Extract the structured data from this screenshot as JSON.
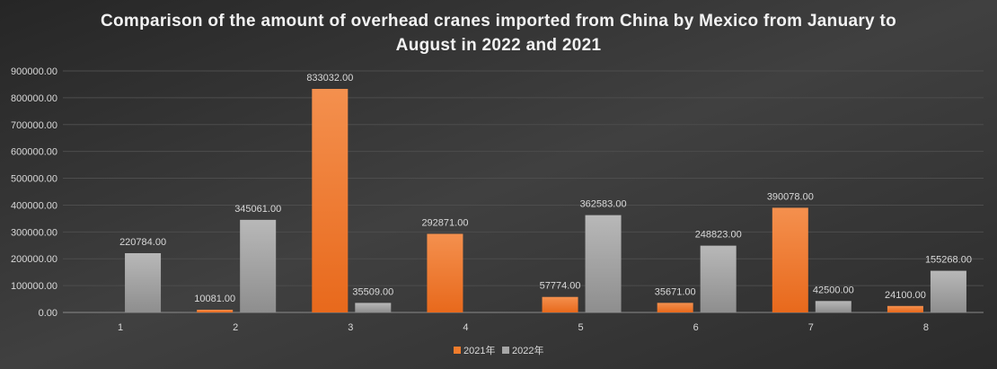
{
  "chart_data": {
    "type": "bar",
    "title": "Comparison of the amount of overhead cranes imported from China by Mexico from January to August in 2022 and 2021",
    "categories": [
      "1",
      "2",
      "3",
      "4",
      "5",
      "6",
      "7",
      "8"
    ],
    "series": [
      {
        "name": "2021年",
        "color": "#f07c2c",
        "values": [
          null,
          10081.0,
          833032.0,
          292871.0,
          57774.0,
          35671.0,
          390078.0,
          24100.0
        ]
      },
      {
        "name": "2022年",
        "color": "#a6a6a6",
        "values": [
          220784.0,
          345061.0,
          35509.0,
          null,
          362583.0,
          248823.0,
          42500.0,
          155268.0
        ]
      }
    ],
    "yticks": [
      "0.00",
      "100000.00",
      "200000.00",
      "300000.00",
      "400000.00",
      "500000.00",
      "600000.00",
      "700000.00",
      "800000.00",
      "900000.00"
    ],
    "ylim": [
      0,
      900000
    ],
    "xlabel": "",
    "ylabel": "",
    "grid": true,
    "legend": "bottom",
    "data_labels": true
  }
}
